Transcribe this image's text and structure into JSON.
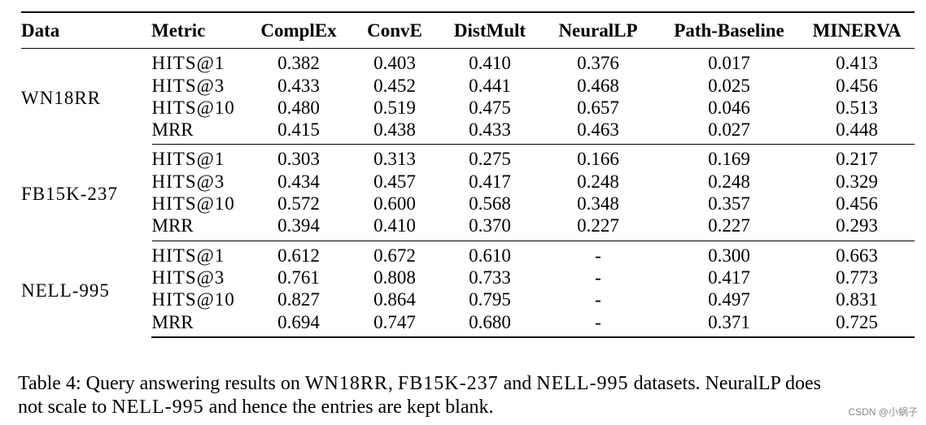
{
  "table": {
    "headers": [
      "Data",
      "Metric",
      "ComplEx",
      "ConvE",
      "DistMult",
      "NeuralLP",
      "Path-Baseline",
      "MINERVA"
    ],
    "groups": [
      {
        "dataset": "WN18RR",
        "rows": [
          {
            "metric": "HITS@1",
            "values": [
              "0.382",
              "0.403",
              "0.410",
              "0.376",
              "0.017",
              "0.413"
            ]
          },
          {
            "metric": "HITS@3",
            "values": [
              "0.433",
              "0.452",
              "0.441",
              "0.468",
              "0.025",
              "0.456"
            ]
          },
          {
            "metric": "HITS@10",
            "values": [
              "0.480",
              "0.519",
              "0.475",
              "0.657",
              "0.046",
              "0.513"
            ]
          },
          {
            "metric": "MRR",
            "values": [
              "0.415",
              "0.438",
              "0.433",
              "0.463",
              "0.027",
              "0.448"
            ]
          }
        ]
      },
      {
        "dataset": "FB15K-237",
        "rows": [
          {
            "metric": "HITS@1",
            "values": [
              "0.303",
              "0.313",
              "0.275",
              "0.166",
              "0.169",
              "0.217"
            ]
          },
          {
            "metric": "HITS@3",
            "values": [
              "0.434",
              "0.457",
              "0.417",
              "0.248",
              "0.248",
              "0.329"
            ]
          },
          {
            "metric": "HITS@10",
            "values": [
              "0.572",
              "0.600",
              "0.568",
              "0.348",
              "0.357",
              "0.456"
            ]
          },
          {
            "metric": "MRR",
            "values": [
              "0.394",
              "0.410",
              "0.370",
              "0.227",
              "0.227",
              "0.293"
            ]
          }
        ]
      },
      {
        "dataset": "NELL-995",
        "rows": [
          {
            "metric": "HITS@1",
            "values": [
              "0.612",
              "0.672",
              "0.610",
              "-",
              "0.300",
              "0.663"
            ]
          },
          {
            "metric": "HITS@3",
            "values": [
              "0.761",
              "0.808",
              "0.733",
              "-",
              "0.417",
              "0.773"
            ]
          },
          {
            "metric": "HITS@10",
            "values": [
              "0.827",
              "0.864",
              "0.795",
              "-",
              "0.497",
              "0.831"
            ]
          },
          {
            "metric": "MRR",
            "values": [
              "0.694",
              "0.747",
              "0.680",
              "-",
              "0.371",
              "0.725"
            ]
          }
        ]
      }
    ]
  },
  "caption": {
    "label": "Table 4:",
    "text_line1_a": " Query answering results on ",
    "ds1": "WN18RR",
    "sep1": ", ",
    "ds2": "FB15K-237",
    "sep2": " and ",
    "ds3": "NELL-995",
    "text_line1_b": " datasets. NeuralLP does",
    "text_line2_a": "not scale to ",
    "ds4": "NELL-995",
    "text_line2_b": " and hence the entries are kept blank."
  },
  "watermark": "CSDN @小蜗子"
}
